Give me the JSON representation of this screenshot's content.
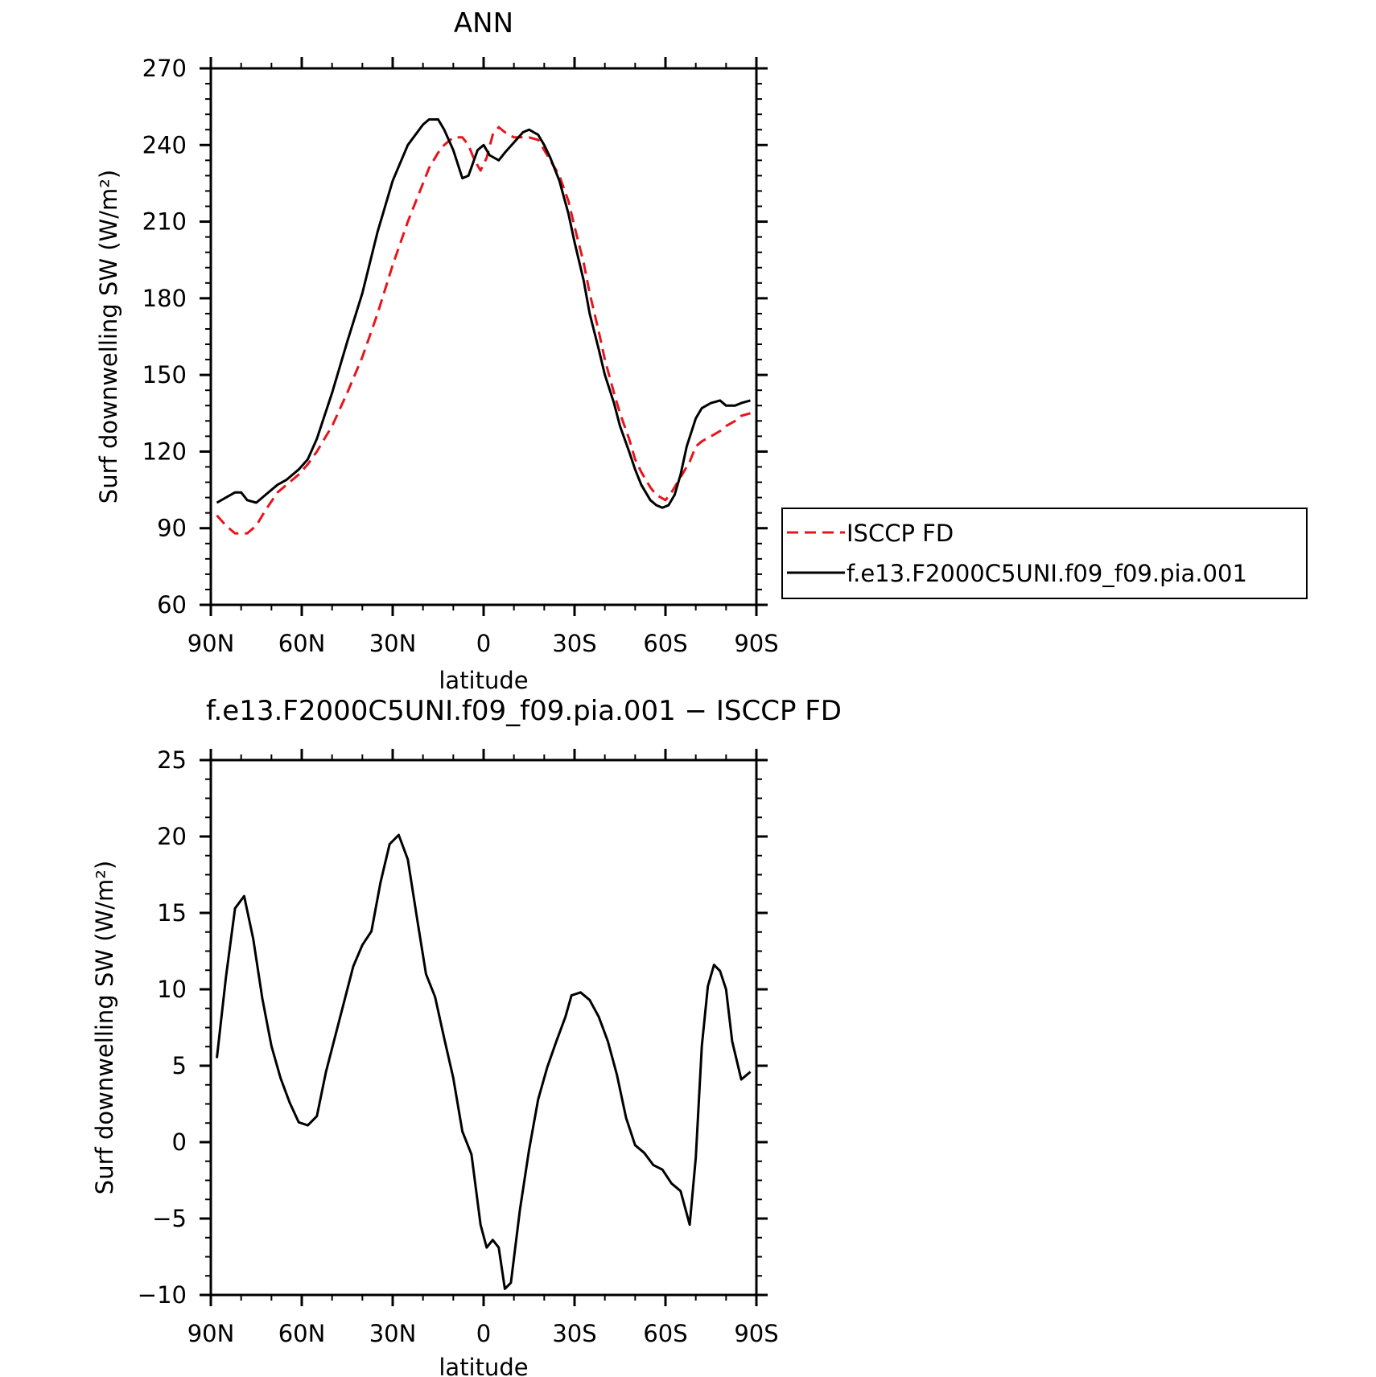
{
  "chart_data": [
    {
      "type": "line",
      "title": "ANN",
      "xlabel": "latitude",
      "ylabel": "Surf downwelling SW (W/m²)",
      "xlim": [
        90,
        -90
      ],
      "ylim": [
        60,
        270
      ],
      "xticks": [
        90,
        60,
        30,
        0,
        -30,
        -60,
        -90
      ],
      "xtick_labels": [
        "90N",
        "60N",
        "30N",
        "0",
        "30S",
        "60S",
        "90S"
      ],
      "yticks": [
        60,
        90,
        120,
        150,
        180,
        210,
        240,
        270
      ],
      "ytick_labels": [
        "60",
        "90",
        "120",
        "150",
        "180",
        "210",
        "240",
        "270"
      ],
      "grid": false,
      "legend": "right",
      "series": [
        {
          "name": "ISCCP FD",
          "color": "#e8141b",
          "dash": "dashed",
          "x": [
            88,
            85,
            82,
            78,
            75,
            72,
            68,
            65,
            61,
            58,
            55,
            50,
            45,
            40,
            35,
            30,
            25,
            20,
            18,
            15,
            13,
            10,
            7,
            5,
            3,
            1,
            -1,
            -3,
            -5,
            -7,
            -10,
            -13,
            -15,
            -18,
            -20,
            -22,
            -25,
            -28,
            -30,
            -33,
            -35,
            -38,
            -40,
            -43,
            -45,
            -48,
            -50,
            -52,
            -55,
            -57,
            -60,
            -62,
            -65,
            -68,
            -70,
            -72,
            -75,
            -78,
            -80,
            -83,
            -85,
            -88
          ],
          "y": [
            95,
            91,
            88,
            88,
            91,
            97,
            104,
            107,
            111,
            115,
            120,
            130,
            143,
            157,
            174,
            193,
            210,
            225,
            231,
            237,
            240,
            243,
            243,
            240,
            234,
            230,
            235,
            244,
            247,
            245,
            243,
            243,
            243,
            242,
            238,
            234,
            228,
            218,
            208,
            194,
            182,
            167,
            156,
            143,
            135,
            125,
            117,
            112,
            106,
            103,
            101,
            104,
            110,
            116,
            122,
            124,
            126,
            128,
            130,
            132,
            134,
            135
          ]
        },
        {
          "name": "f.e13.F2000C5UNI.f09_f09.pia.001",
          "color": "#000000",
          "dash": "solid",
          "x": [
            88,
            85,
            82,
            80,
            78,
            75,
            72,
            68,
            65,
            61,
            58,
            55,
            50,
            45,
            40,
            35,
            30,
            25,
            20,
            18,
            15,
            13,
            10,
            7,
            5,
            2,
            0,
            -2,
            -5,
            -7,
            -10,
            -13,
            -15,
            -18,
            -20,
            -22,
            -25,
            -28,
            -30,
            -33,
            -35,
            -38,
            -40,
            -43,
            -45,
            -48,
            -50,
            -52,
            -55,
            -57,
            -59,
            -61,
            -63,
            -65,
            -67,
            -70,
            -72,
            -75,
            -78,
            -80,
            -83,
            -85,
            -88
          ],
          "y": [
            100,
            102,
            104,
            104,
            101,
            100,
            103,
            107,
            109,
            113,
            117,
            125,
            143,
            163,
            182,
            206,
            226,
            240,
            248,
            250,
            250,
            246,
            238,
            227,
            228,
            238,
            240,
            236,
            234,
            237,
            241,
            245,
            246,
            244,
            240,
            235,
            226,
            213,
            202,
            187,
            174,
            160,
            150,
            139,
            130,
            120,
            113,
            107,
            101,
            99,
            98,
            99,
            103,
            111,
            122,
            133,
            137,
            139,
            140,
            138,
            138,
            139,
            140
          ]
        }
      ]
    },
    {
      "type": "line",
      "title": "f.e13.F2000C5UNI.f09_f09.pia.001 − ISCCP FD",
      "xlabel": "latitude",
      "ylabel": "Surf downwelling SW (W/m²)",
      "xlim": [
        90,
        -90
      ],
      "ylim": [
        -10,
        25
      ],
      "xticks": [
        90,
        60,
        30,
        0,
        -30,
        -60,
        -90
      ],
      "xtick_labels": [
        "90N",
        "60N",
        "30N",
        "0",
        "30S",
        "60S",
        "90S"
      ],
      "yticks": [
        -10,
        -5,
        0,
        5,
        10,
        15,
        20,
        25
      ],
      "ytick_labels": [
        "−10",
        "−5",
        "0",
        "5",
        "10",
        "15",
        "20",
        "25"
      ],
      "grid": false,
      "series": [
        {
          "color": "#000000",
          "dash": "solid",
          "x": [
            88,
            85,
            82,
            79,
            76,
            73,
            70,
            67,
            64,
            61,
            58,
            55,
            52,
            49,
            46,
            43,
            40,
            37,
            34,
            31,
            28,
            25,
            22,
            19,
            16,
            13,
            10,
            7,
            4,
            1,
            -1,
            -3,
            -5,
            -7,
            -9,
            -12,
            -15,
            -18,
            -21,
            -24,
            -27,
            -29,
            -32,
            -35,
            -38,
            -41,
            -44,
            -47,
            -50,
            -53,
            -56,
            -59,
            -62,
            -65,
            -68,
            -70,
            -72,
            -74,
            -76,
            -78,
            -80,
            -82,
            -85,
            -88
          ],
          "y": [
            5.5,
            10.8,
            15.3,
            16.1,
            13.3,
            9.4,
            6.3,
            4.2,
            2.6,
            1.3,
            1.1,
            1.7,
            4.6,
            6.9,
            9.2,
            11.5,
            12.9,
            13.8,
            17.0,
            19.5,
            20.1,
            18.5,
            14.7,
            11.0,
            9.5,
            6.8,
            4.2,
            0.7,
            -0.8,
            -5.4,
            -6.9,
            -6.4,
            -6.9,
            -9.6,
            -9.2,
            -4.4,
            -0.5,
            2.8,
            4.9,
            6.6,
            8.2,
            9.6,
            9.8,
            9.3,
            8.2,
            6.6,
            4.4,
            1.6,
            -0.2,
            -0.7,
            -1.5,
            -1.8,
            -2.7,
            -3.2,
            -5.4,
            -1.0,
            6.3,
            10.2,
            11.6,
            11.2,
            10.0,
            6.6,
            4.1,
            4.6
          ]
        }
      ]
    }
  ]
}
